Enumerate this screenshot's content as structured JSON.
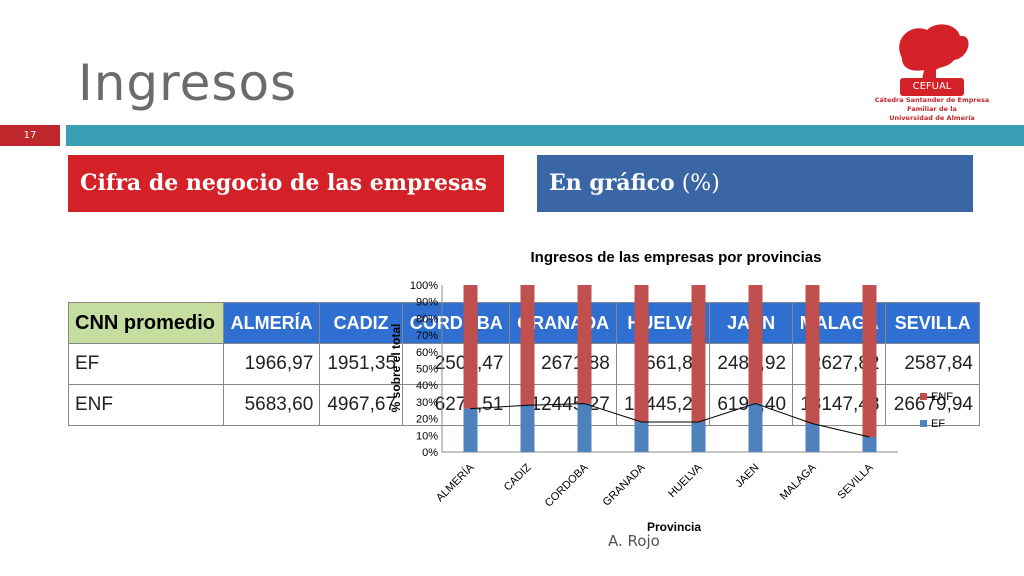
{
  "slide": {
    "title": "Ingresos",
    "number": "17",
    "author": "A. Rojo"
  },
  "logo": {
    "name": "CEFUAL",
    "sub1": "Cátedra Santander de Empresa",
    "sub2": "Familiar de la",
    "sub3": "Universidad de Almería"
  },
  "headers": {
    "left": "Cifra de negocio de las empresas",
    "right_bold": "En gráfico",
    "right_rest": " (%)"
  },
  "table": {
    "label": "CNN promedio",
    "columns": [
      "ALMERÍA",
      "CADIZ",
      "CORDOBA",
      "GRANADA",
      "HUELVA",
      "JAEN",
      "MALAGA",
      "SEVILLA"
    ],
    "rows": [
      {
        "label": "EF",
        "values": [
          "1966,97",
          "1951,35",
          "2500,47",
          "2671,88",
          "2661,88",
          "2489,92",
          "2627,82",
          "2587,84"
        ]
      },
      {
        "label": "ENF",
        "values": [
          "5683,60",
          "4967,67",
          "6278,51",
          "12445,27",
          "12445,27",
          "6197,40",
          "13147,48",
          "26679,94"
        ]
      }
    ]
  },
  "colors": {
    "enf": "#c0504d",
    "ef": "#4f81bd",
    "red": "#d42128",
    "blue": "#3a66a6",
    "teal": "#3a9fb4"
  },
  "chart_data": {
    "type": "bar",
    "stacked": true,
    "title": "Ingresos de las empresas por provincias",
    "xlabel": "Provincia",
    "ylabel": "% sobre el total",
    "ylim": [
      0,
      100
    ],
    "yticks": [
      "0%",
      "10%",
      "20%",
      "30%",
      "40%",
      "50%",
      "60%",
      "70%",
      "80%",
      "90%",
      "100%"
    ],
    "categories": [
      "ALMERÍA",
      "CADIZ",
      "CORDOBA",
      "GRANADA",
      "HUELVA",
      "JAEN",
      "MALAGA",
      "SEVILLA"
    ],
    "series": [
      {
        "name": "EF",
        "values": [
          26,
          28,
          29,
          18,
          18,
          29,
          17,
          9
        ]
      },
      {
        "name": "ENF",
        "values": [
          74,
          72,
          71,
          82,
          82,
          71,
          83,
          91
        ]
      }
    ],
    "legend": "right"
  }
}
